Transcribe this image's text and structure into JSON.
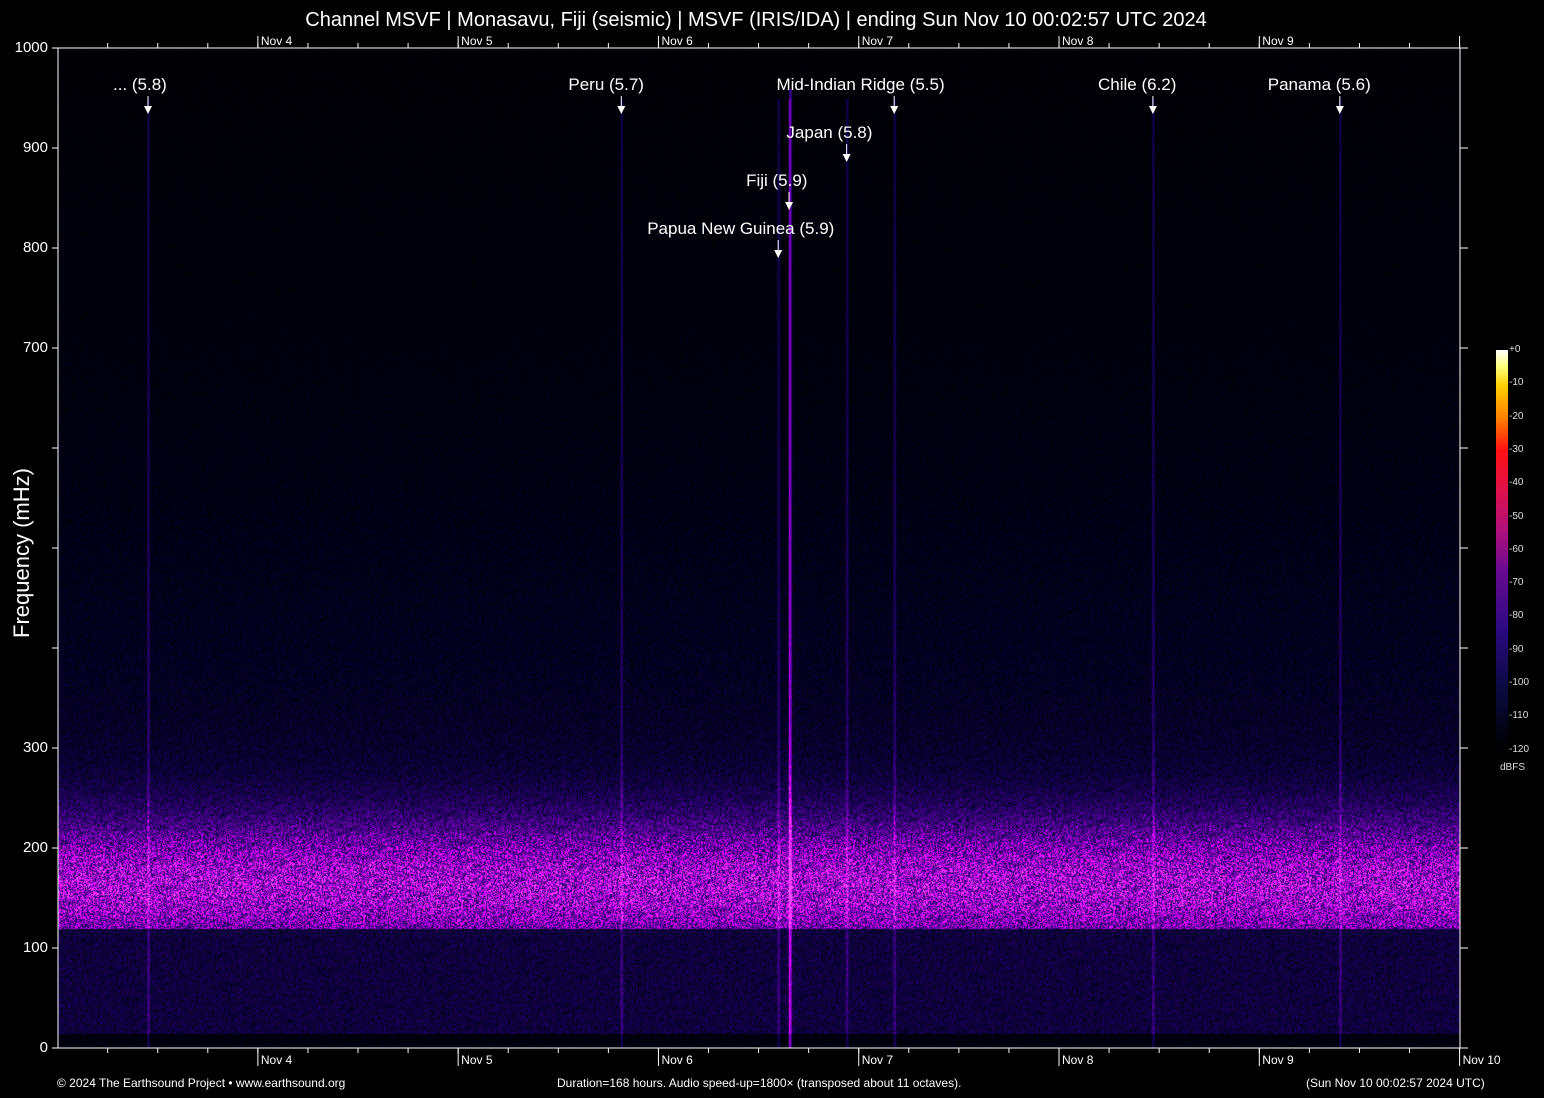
{
  "chart_data": {
    "type": "heatmap",
    "title": "Channel MSVF | Monasavu, Fiji (seismic) | MSVF (IRIS/IDA) | ending Sun Nov 10 00:02:57 UTC 2024",
    "ylabel": "Frequency (mHz)",
    "ylim": [
      0,
      1000
    ],
    "y_ticks": [
      0,
      100,
      200,
      300,
      400,
      500,
      600,
      700,
      800,
      900,
      1000
    ],
    "y_tick_labels": [
      "0",
      "100",
      "200",
      "300",
      "",
      "",
      "",
      "700",
      "800",
      "900",
      "1000"
    ],
    "x_range": [
      "2024-11-03T00:02:57Z",
      "2024-11-10T00:02:57Z"
    ],
    "x_tick_labels": [
      "Nov  4",
      "Nov  5",
      "Nov  6",
      "Nov  7",
      "Nov  8",
      "Nov  9",
      "Nov 10"
    ],
    "x_ticks": [
      "2024-11-04T00:00:00Z",
      "2024-11-05T00:00:00Z",
      "2024-11-06T00:00:00Z",
      "2024-11-07T00:00:00Z",
      "2024-11-08T00:00:00Z",
      "2024-11-09T00:00:00Z",
      "2024-11-10T00:00:00Z"
    ],
    "colorbar": {
      "unit": "dBFS",
      "range": [
        -120,
        0
      ],
      "ticks": [
        "+0",
        "-10",
        "-20",
        "-30",
        "-40",
        "-50",
        "-60",
        "-70",
        "-80",
        "-90",
        "-100",
        "-110",
        "-120"
      ],
      "colormap": "black-blue-purple-red-yellow-white"
    },
    "events": [
      {
        "label": "... (5.8)",
        "time": "2024-11-03T10:50Z"
      },
      {
        "label": "Peru (5.7)",
        "time": "2024-11-05T19:33Z"
      },
      {
        "label": "Mid-Indian Ridge (5.5)",
        "time": "2024-11-07T04:15Z"
      },
      {
        "label": "Japan (5.8)",
        "time": "2024-11-06T22:33Z"
      },
      {
        "label": "Fiji (5.9)",
        "time": "2024-11-06T15:39Z"
      },
      {
        "label": "Papua New Guinea (5.9)",
        "time": "2024-11-06T14:21Z"
      },
      {
        "label": "Chile (6.2)",
        "time": "2024-11-08T11:15Z"
      },
      {
        "label": "Panama (5.6)",
        "time": "2024-11-09T09:39Z"
      }
    ],
    "grid": false
  },
  "footer": {
    "copyright": "© 2024 The Earthsound Project • www.earthsound.org",
    "info": "Duration=168 hours. Audio speed-up=1800× (transposed about 11 octaves).",
    "end_time": "(Sun Nov 10 00:02:57 2024 UTC)"
  }
}
